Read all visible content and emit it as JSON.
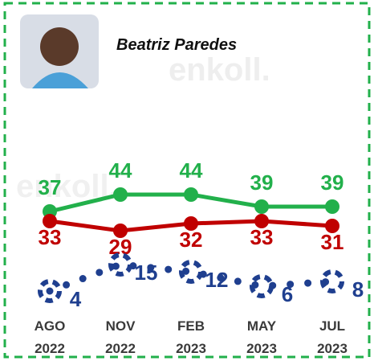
{
  "chart_data": {
    "type": "line",
    "title": "Beatriz Paredes",
    "watermark": "enkoll.",
    "categories": [
      "AGO\n2022",
      "NOV\n2022",
      "FEB\n2023",
      "MAY\n2023",
      "JUL\n2023"
    ],
    "ylim": [
      0,
      50
    ],
    "series": [
      {
        "color": "#22b04b",
        "values": [
          37,
          44,
          44,
          39,
          39
        ]
      },
      {
        "color": "#c00000",
        "values": [
          33,
          29,
          32,
          33,
          31
        ]
      },
      {
        "color": "#1f3f8f",
        "values": [
          4,
          15,
          12,
          6,
          8
        ]
      }
    ]
  }
}
